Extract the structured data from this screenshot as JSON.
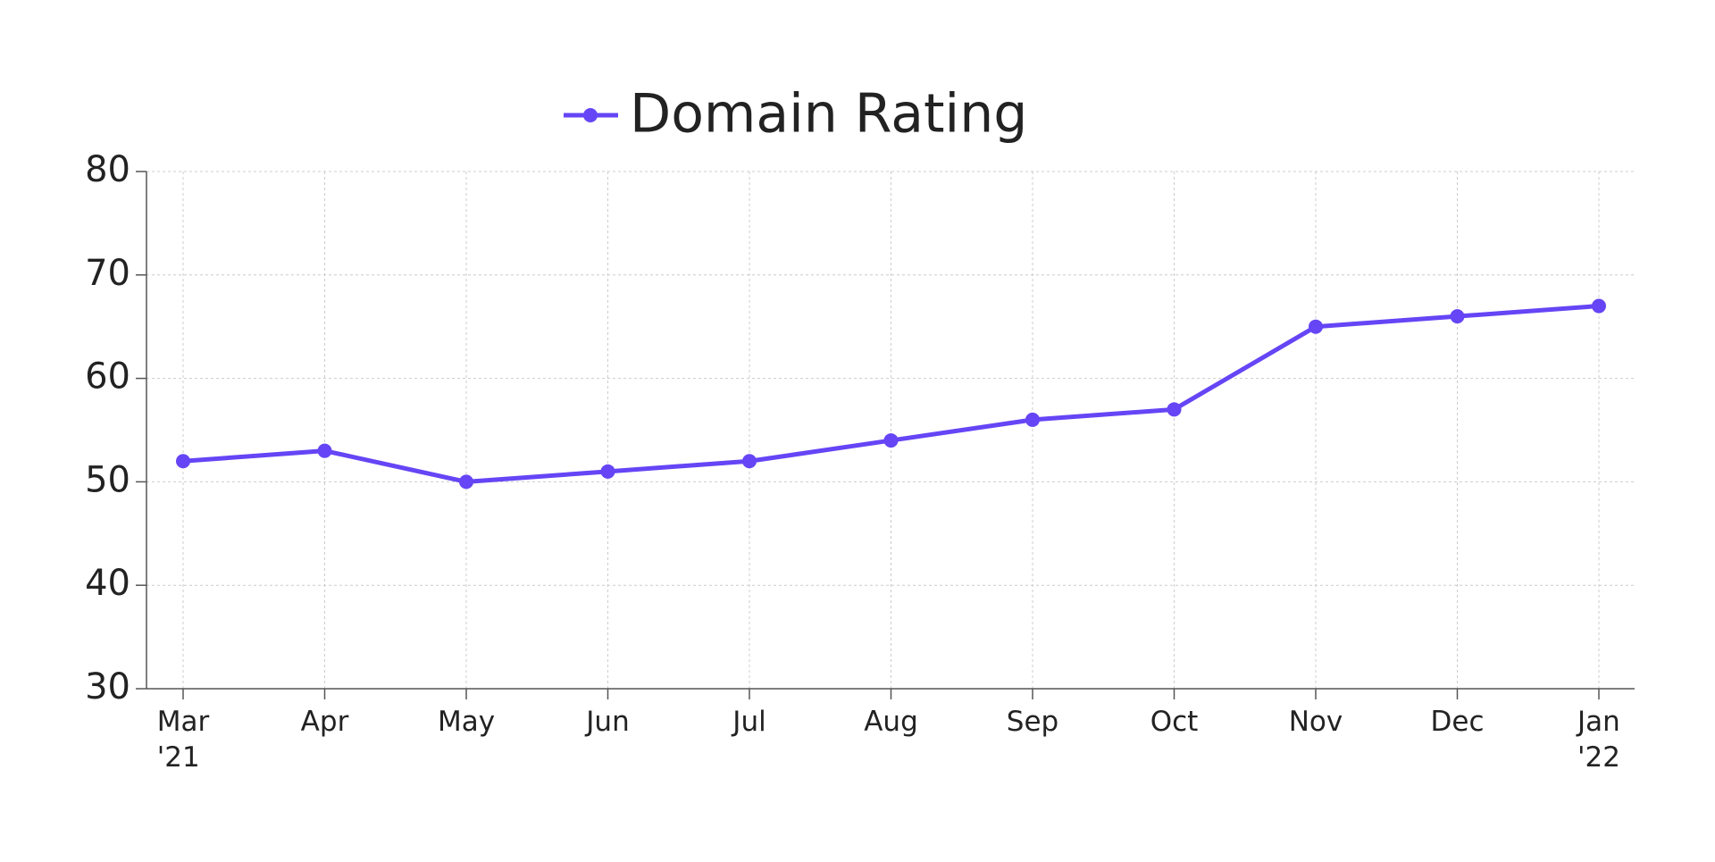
{
  "chart_data": {
    "type": "line",
    "categories": [
      "Mar\n'21",
      "Apr",
      "May",
      "Jun",
      "Jul",
      "Aug",
      "Sep",
      "Oct",
      "Nov",
      "Dec",
      "Jan\n'22"
    ],
    "series": [
      {
        "name": "Domain Rating",
        "color": "#6545f5",
        "values": [
          52,
          53,
          50,
          51,
          52,
          54,
          56,
          57,
          65,
          66,
          67
        ]
      }
    ],
    "ylim": [
      30,
      80
    ],
    "yticks": [
      30,
      40,
      50,
      60,
      70,
      80
    ],
    "grid": true,
    "legend": "top"
  }
}
